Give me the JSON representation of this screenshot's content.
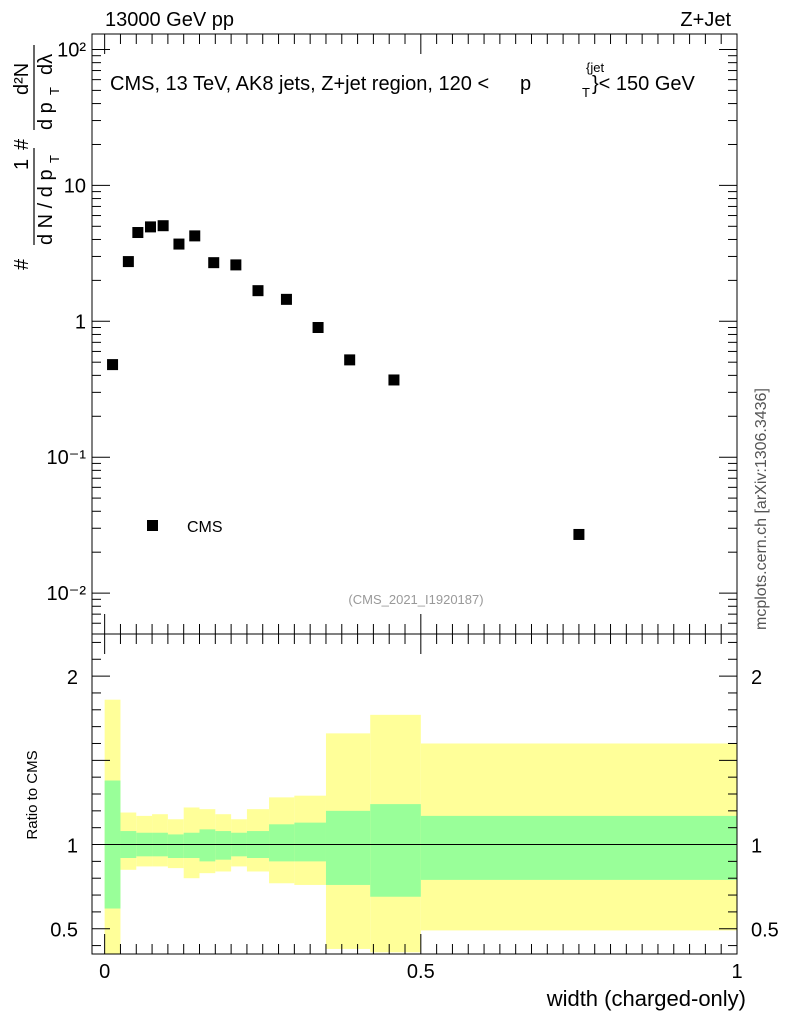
{
  "header": {
    "energy_label": "13000 GeV pp",
    "process_label": "Z+Jet",
    "side_label": "mcplots.cern.ch [arXiv:1306.3436]",
    "watermark": "(CMS_2021_I1920187)"
  },
  "chart_data": [
    {
      "type": "scatter",
      "panel": "main",
      "yscale": "log",
      "title": "CMS, 13 TeV, AK8 jets, Z+jet region, 120 <",
      "title_sym": "p",
      "title_sup": "{jet",
      "title_sub": "T",
      "title_tail": "}< 150 GeV",
      "ylabel": {
        "hash": "#",
        "one": "1",
        "dn": "d N / d p",
        "t_sub": "T",
        "d2n": "d²N",
        "dpt": "d p",
        "dlambda": "dλ"
      },
      "xlim": [
        -0.02,
        1.0
      ],
      "ylim": [
        0.005,
        130
      ],
      "y_tick_labels": [
        "10⁻²",
        "10⁻¹",
        "1",
        "10",
        "10²"
      ],
      "y_tick_values": [
        0.01,
        0.1,
        1,
        10,
        100
      ],
      "legend": {
        "label": "CMS",
        "position": "bottom-left"
      },
      "series": [
        {
          "name": "CMS",
          "x": [
            0.0125,
            0.0375,
            0.0525,
            0.0725,
            0.0925,
            0.1175,
            0.1425,
            0.1725,
            0.2075,
            0.2425,
            0.2875,
            0.3375,
            0.3875,
            0.4575,
            0.75
          ],
          "y": [
            0.48,
            2.75,
            4.5,
            4.95,
            5.05,
            3.7,
            4.25,
            2.7,
            2.6,
            1.68,
            1.45,
            0.9,
            0.52,
            0.37,
            0.027
          ]
        }
      ]
    },
    {
      "type": "area",
      "panel": "ratio",
      "ylabel": "Ratio to CMS",
      "xlabel": "width (charged-only)",
      "xlim": [
        -0.02,
        1.0
      ],
      "ylim": [
        0.35,
        2.25
      ],
      "y_tick_labels": [
        "0.5",
        "1",
        "2"
      ],
      "y_tick_values": [
        0.5,
        1,
        2
      ],
      "x_tick_labels": [
        "0",
        "0.5",
        "1"
      ],
      "x_tick_values": [
        0,
        0.5,
        1
      ],
      "reference_line": 1,
      "bins": [
        0,
        0.025,
        0.05,
        0.075,
        0.1,
        0.125,
        0.15,
        0.175,
        0.2,
        0.225,
        0.25,
        0.275,
        0.3,
        0.325,
        0.35,
        0.375,
        0.4,
        0.425,
        0.45,
        0.475,
        0.5,
        0.525,
        0.55,
        0.575,
        0.6,
        0.625,
        0.65,
        0.675,
        0.7,
        0.725,
        0.75,
        0.775,
        0.8,
        0.825,
        0.85,
        0.875,
        0.9,
        0.925,
        0.95,
        0.975,
        1.0
      ],
      "bins_note": "band edges listed below",
      "band_edges": [
        0,
        0.025,
        0.05,
        0.075,
        0.1,
        0.125,
        0.15,
        0.175,
        0.2,
        0.225,
        0.26,
        0.3,
        0.35,
        0.42,
        0.5,
        1.0
      ],
      "stat_band": {
        "name": "stat",
        "color": "#99ff99",
        "lower": [
          0.62,
          0.92,
          0.93,
          0.93,
          0.92,
          0.92,
          0.9,
          0.91,
          0.93,
          0.92,
          0.9,
          0.9,
          0.76,
          0.69,
          0.79
        ],
        "upper": [
          1.38,
          1.08,
          1.07,
          1.07,
          1.06,
          1.07,
          1.09,
          1.08,
          1.07,
          1.08,
          1.12,
          1.13,
          1.2,
          1.24,
          1.17
        ]
      },
      "total_band": {
        "name": "total",
        "color": "#ffff99",
        "lower": [
          0.0,
          0.85,
          0.87,
          0.87,
          0.86,
          0.8,
          0.83,
          0.84,
          0.87,
          0.84,
          0.77,
          0.76,
          0.38,
          0.36,
          0.49
        ],
        "upper": [
          1.86,
          1.19,
          1.17,
          1.18,
          1.15,
          1.22,
          1.21,
          1.18,
          1.15,
          1.21,
          1.28,
          1.29,
          1.66,
          1.77,
          1.6
        ]
      }
    }
  ]
}
